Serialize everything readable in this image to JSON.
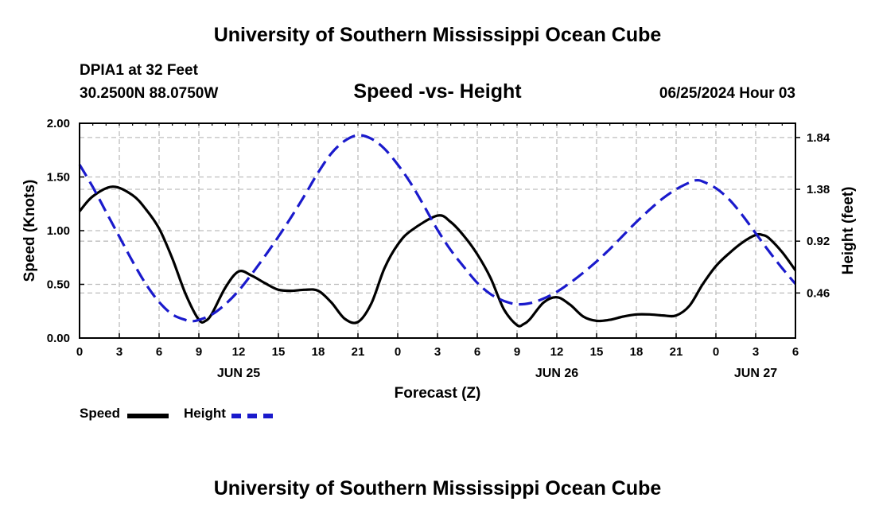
{
  "header": {
    "title": "University of Southern Mississippi Ocean Cube",
    "station": "DPIA1 at 32 Feet",
    "coords": "30.2500N  88.0750W",
    "subtitle": "Speed -vs- Height",
    "datetime": "06/25/2024 Hour 03"
  },
  "footer": {
    "title": "University of Southern Mississippi Ocean Cube"
  },
  "legend": {
    "speed_label": "Speed",
    "height_label": "Height"
  },
  "colors": {
    "speed": "#000000",
    "height": "#1a1acc",
    "grid": "#bdbdbd"
  },
  "chart_data": {
    "type": "line",
    "xlabel": "Forecast (Z)",
    "x_ticks": [
      {
        "hour": 0,
        "label": "0"
      },
      {
        "hour": 3,
        "label": "3"
      },
      {
        "hour": 6,
        "label": "6"
      },
      {
        "hour": 9,
        "label": "9"
      },
      {
        "hour": 12,
        "label": "12"
      },
      {
        "hour": 15,
        "label": "15"
      },
      {
        "hour": 18,
        "label": "18"
      },
      {
        "hour": 21,
        "label": "21"
      },
      {
        "hour": 24,
        "label": "0"
      },
      {
        "hour": 27,
        "label": "3"
      },
      {
        "hour": 30,
        "label": "6"
      },
      {
        "hour": 33,
        "label": "9"
      },
      {
        "hour": 36,
        "label": "12"
      },
      {
        "hour": 39,
        "label": "15"
      },
      {
        "hour": 42,
        "label": "18"
      },
      {
        "hour": 45,
        "label": "21"
      },
      {
        "hour": 48,
        "label": "0"
      },
      {
        "hour": 51,
        "label": "3"
      },
      {
        "hour": 54,
        "label": "6"
      }
    ],
    "date_labels": [
      {
        "hour": 12,
        "label": "JUN 25"
      },
      {
        "hour": 36,
        "label": "JUN 26"
      },
      {
        "hour": 51,
        "label": "JUN 27"
      }
    ],
    "xlim": [
      0,
      54
    ],
    "y_left": {
      "label": "Speed (Knots)",
      "lim": [
        0,
        2
      ],
      "ticks": [
        0,
        0.5,
        1,
        1.5,
        2
      ],
      "tick_labels": [
        "0.00",
        "0.50",
        "1.00",
        "1.50",
        "2.00"
      ]
    },
    "y_right": {
      "label": "Height (feet)",
      "lim": [
        0.06,
        1.9662
      ],
      "ticks": [
        0.46,
        0.92,
        1.38,
        1.84
      ],
      "tick_labels": [
        "0.46",
        "0.92",
        "1.38",
        "1.84"
      ]
    },
    "series": [
      {
        "name": "Speed",
        "axis": "left",
        "x": [
          0,
          1,
          2.5,
          4,
          5,
          6,
          7,
          8,
          9,
          9.5,
          10,
          11,
          12,
          13,
          14,
          15,
          16,
          17,
          18,
          19,
          20,
          21,
          22,
          23,
          24,
          25,
          27,
          28,
          29,
          30,
          31,
          32,
          33,
          33.5,
          34,
          35,
          36,
          37,
          38,
          39,
          40,
          41,
          42,
          43,
          44,
          45,
          46,
          47,
          48,
          49,
          50,
          51,
          51.5,
          52,
          53,
          54
        ],
        "values": [
          1.18,
          1.32,
          1.41,
          1.33,
          1.2,
          1.02,
          0.74,
          0.41,
          0.17,
          0.16,
          0.23,
          0.47,
          0.62,
          0.58,
          0.51,
          0.45,
          0.44,
          0.45,
          0.44,
          0.33,
          0.18,
          0.15,
          0.32,
          0.65,
          0.87,
          1.0,
          1.14,
          1.08,
          0.95,
          0.78,
          0.56,
          0.27,
          0.12,
          0.13,
          0.18,
          0.33,
          0.38,
          0.31,
          0.2,
          0.16,
          0.17,
          0.2,
          0.22,
          0.22,
          0.21,
          0.21,
          0.3,
          0.5,
          0.67,
          0.79,
          0.89,
          0.96,
          0.96,
          0.93,
          0.8,
          0.63
        ]
      },
      {
        "name": "Height",
        "axis": "right",
        "x": [
          0,
          1,
          2,
          3,
          4,
          5,
          6,
          7,
          8,
          8.5,
          9,
          10,
          11,
          12,
          13,
          14,
          15,
          16,
          17,
          18,
          19,
          20,
          21,
          22,
          23,
          24,
          25,
          26,
          27,
          28,
          29,
          30,
          31,
          32,
          33,
          34,
          35,
          36,
          37,
          38,
          39,
          40,
          41,
          42,
          43,
          44,
          45,
          46,
          46.5,
          47,
          48,
          49,
          50,
          51,
          52,
          53,
          54
        ],
        "values": [
          1.6,
          1.4,
          1.18,
          0.96,
          0.74,
          0.54,
          0.38,
          0.27,
          0.22,
          0.21,
          0.22,
          0.27,
          0.36,
          0.48,
          0.63,
          0.79,
          0.96,
          1.14,
          1.33,
          1.53,
          1.7,
          1.81,
          1.86,
          1.83,
          1.74,
          1.6,
          1.43,
          1.23,
          1.02,
          0.84,
          0.69,
          0.55,
          0.45,
          0.39,
          0.36,
          0.37,
          0.41,
          0.47,
          0.55,
          0.64,
          0.74,
          0.85,
          0.97,
          1.09,
          1.2,
          1.3,
          1.38,
          1.44,
          1.46,
          1.45,
          1.39,
          1.29,
          1.15,
          0.99,
          0.83,
          0.68,
          0.54
        ]
      }
    ]
  }
}
